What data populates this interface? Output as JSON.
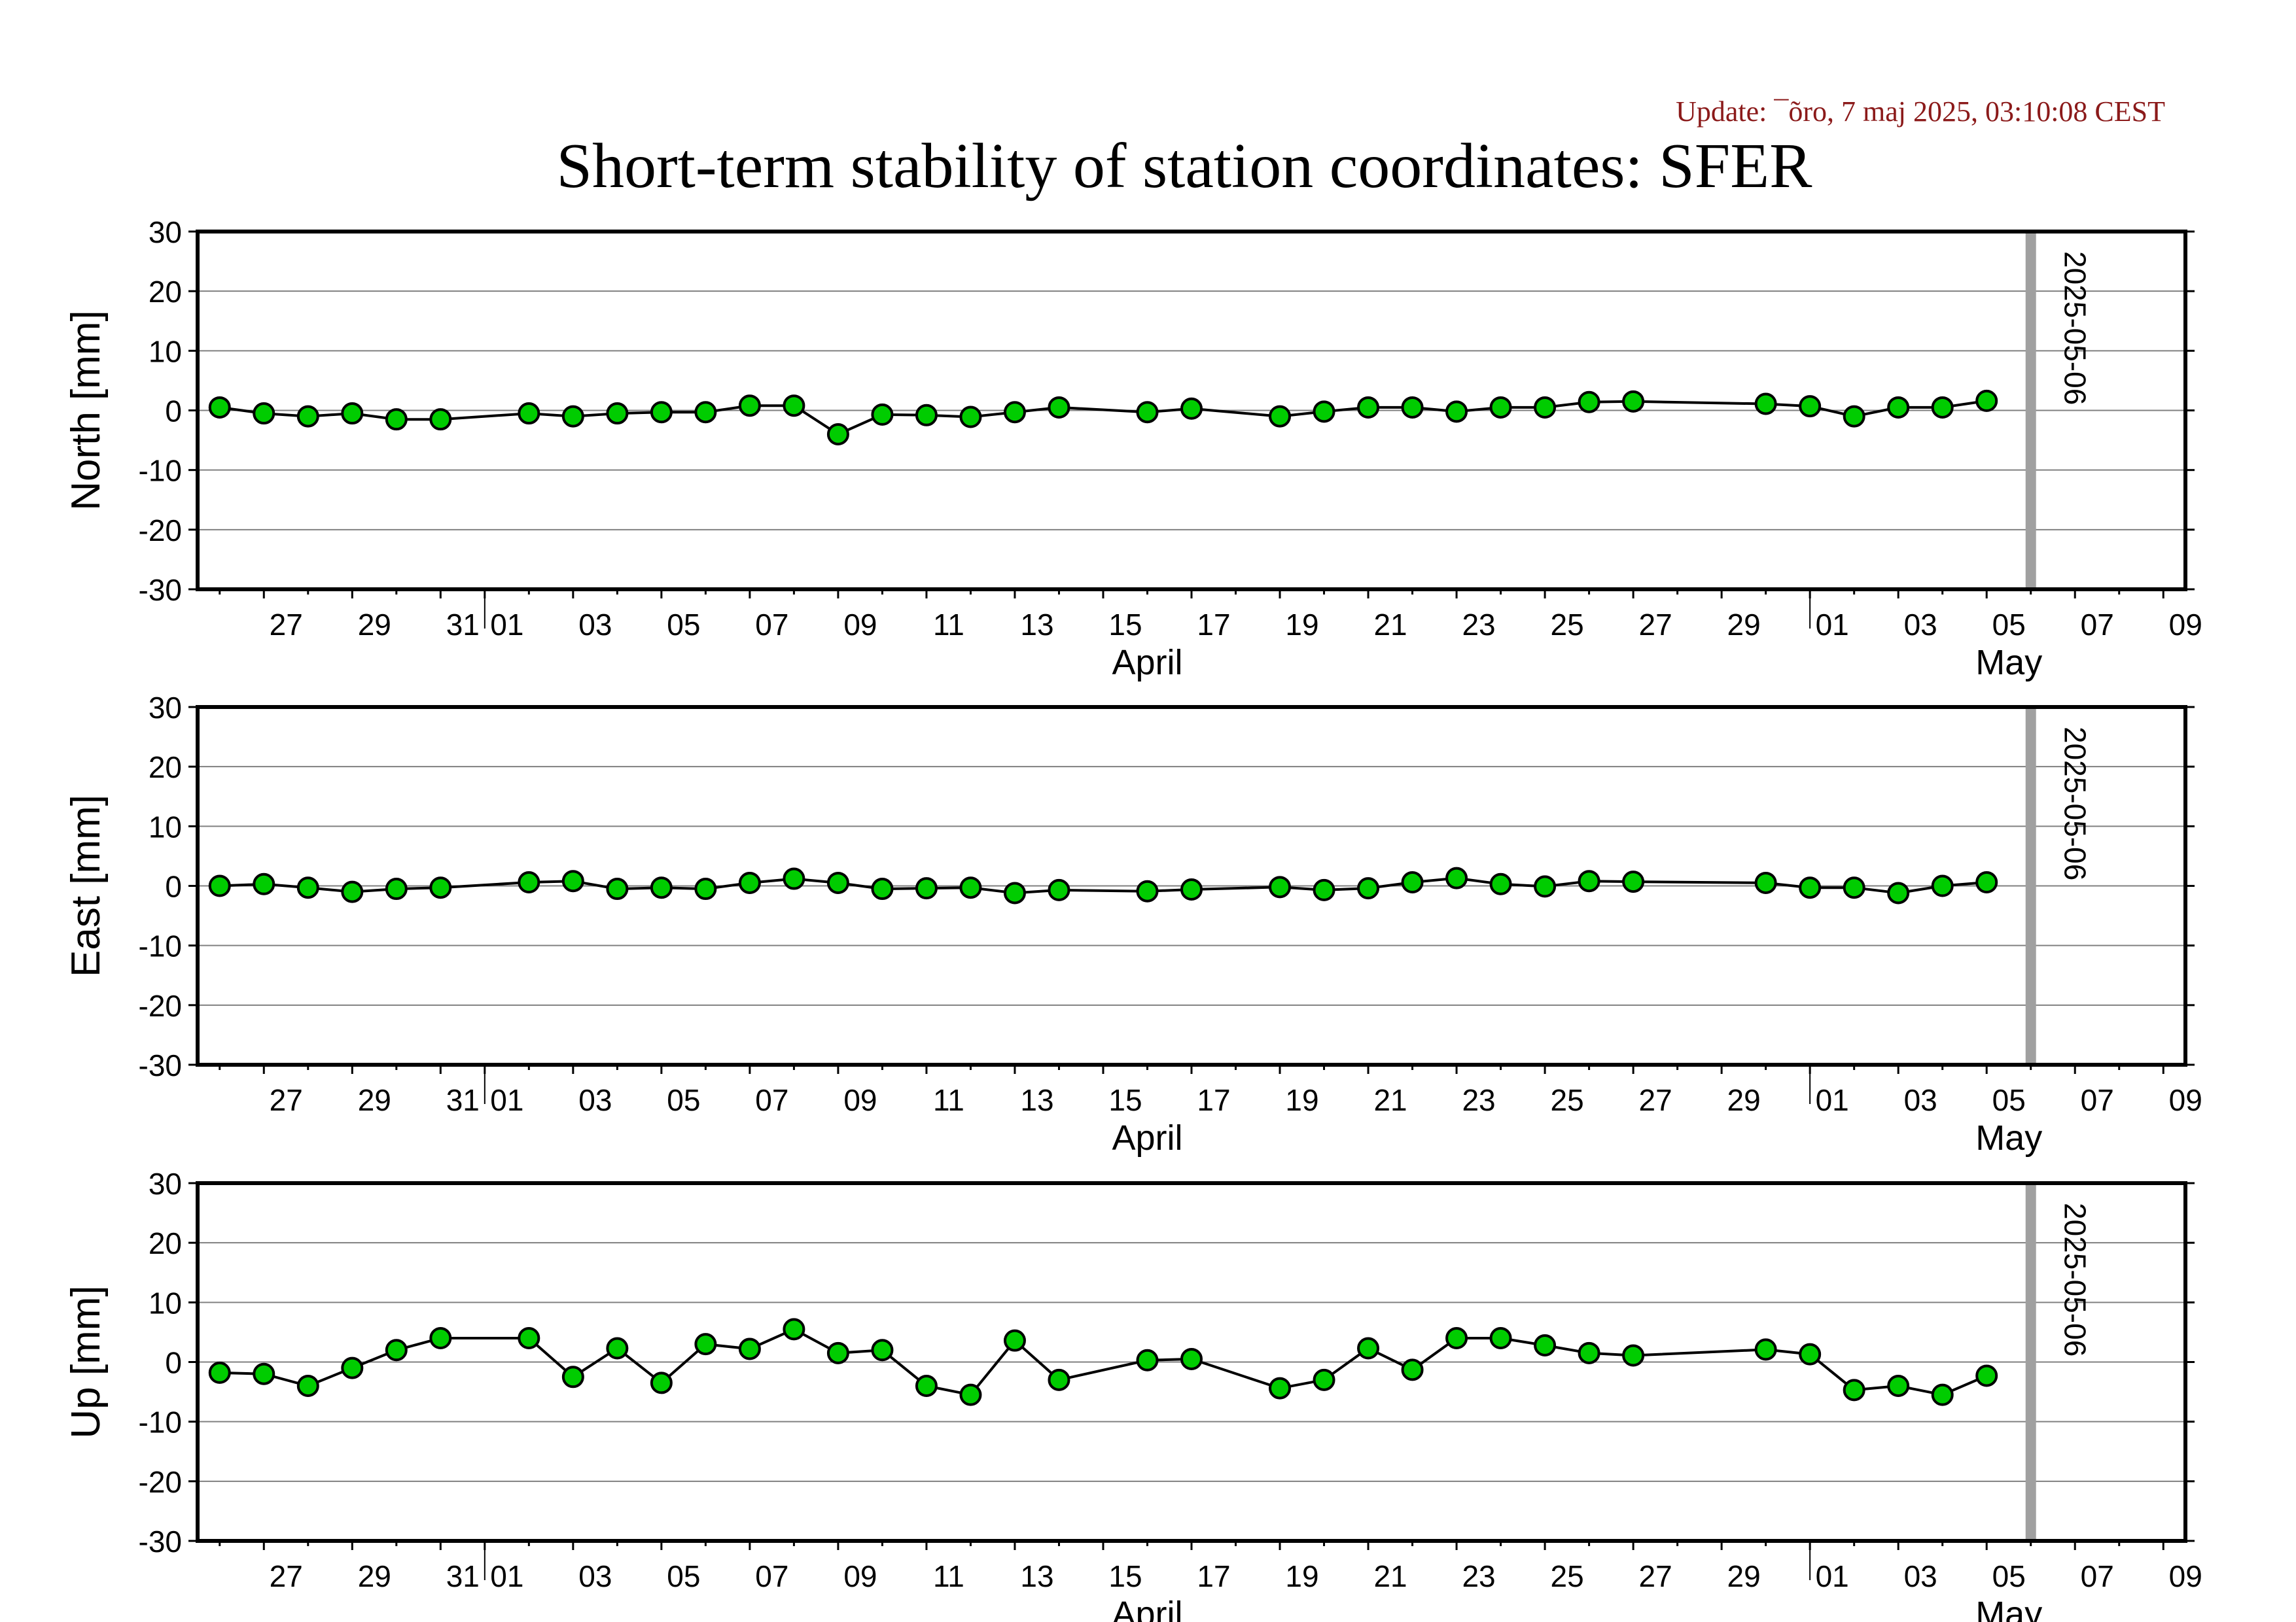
{
  "update_text": "Update: ¯õro, 7 maj 2025, 03:10:08 CEST",
  "title": "Short-term stability of station coordinates: SFER",
  "colors": {
    "marker_fill": "#00cc00",
    "marker_edge": "#000000",
    "line": "#000000",
    "gridline": "#808080",
    "marker_line": "#a0a0a0",
    "update_text": "#8b1a1a"
  },
  "chart_data": [
    {
      "type": "line",
      "ylabel": "North [mm]",
      "ylim": [
        -30,
        30
      ],
      "yticks": [
        -30,
        -20,
        -10,
        0,
        10,
        20,
        30
      ],
      "xlim": [
        "2025-03-25T12:00",
        "2025-05-09T12:00"
      ],
      "x_tick_labels": [
        "27",
        "29",
        "31",
        "01",
        "03",
        "05",
        "07",
        "09",
        "11",
        "13",
        "15",
        "17",
        "19",
        "21",
        "23",
        "25",
        "27",
        "29",
        "01",
        "03",
        "05",
        "07",
        "09"
      ],
      "month_labels": [
        "April",
        "May"
      ],
      "marker_line": {
        "x": "2025-05-06",
        "label": "2025-05-06"
      },
      "grid": true,
      "series": [
        {
          "x": [
            "2025-03-26",
            "2025-03-27",
            "2025-03-28",
            "2025-03-29",
            "2025-03-30",
            "2025-03-31",
            "2025-04-02",
            "2025-04-03",
            "2025-04-04",
            "2025-04-05",
            "2025-04-06",
            "2025-04-07",
            "2025-04-08",
            "2025-04-09",
            "2025-04-10",
            "2025-04-11",
            "2025-04-12",
            "2025-04-13",
            "2025-04-14",
            "2025-04-16",
            "2025-04-17",
            "2025-04-19",
            "2025-04-20",
            "2025-04-21",
            "2025-04-22",
            "2025-04-23",
            "2025-04-24",
            "2025-04-25",
            "2025-04-26",
            "2025-04-27",
            "2025-04-30",
            "2025-05-01",
            "2025-05-02",
            "2025-05-03",
            "2025-05-04",
            "2025-05-05"
          ],
          "y": [
            0.5,
            -0.5,
            -1,
            -0.5,
            -1.5,
            -1.5,
            -0.5,
            -1,
            -0.5,
            -0.3,
            -0.3,
            0.8,
            0.8,
            -4,
            -0.7,
            -0.8,
            -1.1,
            -0.3,
            0.5,
            -0.3,
            0.3,
            -1,
            -0.2,
            0.5,
            0.5,
            -0.2,
            0.5,
            0.5,
            1.4,
            1.5,
            1.1,
            0.7,
            -1,
            0.5,
            0.5,
            1.6
          ]
        }
      ]
    },
    {
      "type": "line",
      "ylabel": "East [mm]",
      "ylim": [
        -30,
        30
      ],
      "yticks": [
        -30,
        -20,
        -10,
        0,
        10,
        20,
        30
      ],
      "xlim": [
        "2025-03-25T12:00",
        "2025-05-09T12:00"
      ],
      "x_tick_labels": [
        "27",
        "29",
        "31",
        "01",
        "03",
        "05",
        "07",
        "09",
        "11",
        "13",
        "15",
        "17",
        "19",
        "21",
        "23",
        "25",
        "27",
        "29",
        "01",
        "03",
        "05",
        "07",
        "09"
      ],
      "month_labels": [
        "April",
        "May"
      ],
      "marker_line": {
        "x": "2025-05-06",
        "label": "2025-05-06"
      },
      "grid": true,
      "series": [
        {
          "x": [
            "2025-03-26",
            "2025-03-27",
            "2025-03-28",
            "2025-03-29",
            "2025-03-30",
            "2025-03-31",
            "2025-04-02",
            "2025-04-03",
            "2025-04-04",
            "2025-04-05",
            "2025-04-06",
            "2025-04-07",
            "2025-04-08",
            "2025-04-09",
            "2025-04-10",
            "2025-04-11",
            "2025-04-12",
            "2025-04-13",
            "2025-04-14",
            "2025-04-16",
            "2025-04-17",
            "2025-04-19",
            "2025-04-20",
            "2025-04-21",
            "2025-04-22",
            "2025-04-23",
            "2025-04-24",
            "2025-04-25",
            "2025-04-26",
            "2025-04-27",
            "2025-04-30",
            "2025-05-01",
            "2025-05-02",
            "2025-05-03",
            "2025-05-04",
            "2025-05-05"
          ],
          "y": [
            0,
            0.3,
            -0.3,
            -1,
            -0.5,
            -0.3,
            0.6,
            0.8,
            -0.5,
            -0.3,
            -0.5,
            0.5,
            1.2,
            0.5,
            -0.5,
            -0.4,
            -0.3,
            -1.2,
            -0.7,
            -0.9,
            -0.6,
            -0.2,
            -0.7,
            -0.4,
            0.6,
            1.3,
            0.3,
            -0.1,
            0.8,
            0.7,
            0.5,
            -0.3,
            -0.3,
            -1.2,
            0,
            0.6
          ]
        }
      ]
    },
    {
      "type": "line",
      "ylabel": "Up [mm]",
      "ylim": [
        -30,
        30
      ],
      "yticks": [
        -30,
        -20,
        -10,
        0,
        10,
        20,
        30
      ],
      "xlim": [
        "2025-03-25T12:00",
        "2025-05-09T12:00"
      ],
      "x_tick_labels": [
        "27",
        "29",
        "31",
        "01",
        "03",
        "05",
        "07",
        "09",
        "11",
        "13",
        "15",
        "17",
        "19",
        "21",
        "23",
        "25",
        "27",
        "29",
        "01",
        "03",
        "05",
        "07",
        "09"
      ],
      "month_labels": [
        "April",
        "May"
      ],
      "marker_line": {
        "x": "2025-05-06",
        "label": "2025-05-06"
      },
      "grid": true,
      "series": [
        {
          "x": [
            "2025-03-26",
            "2025-03-27",
            "2025-03-28",
            "2025-03-29",
            "2025-03-30",
            "2025-03-31",
            "2025-04-02",
            "2025-04-03",
            "2025-04-04",
            "2025-04-05",
            "2025-04-06",
            "2025-04-07",
            "2025-04-08",
            "2025-04-09",
            "2025-04-10",
            "2025-04-11",
            "2025-04-12",
            "2025-04-13",
            "2025-04-14",
            "2025-04-16",
            "2025-04-17",
            "2025-04-19",
            "2025-04-20",
            "2025-04-21",
            "2025-04-22",
            "2025-04-23",
            "2025-04-24",
            "2025-04-25",
            "2025-04-26",
            "2025-04-27",
            "2025-04-30",
            "2025-05-01",
            "2025-05-02",
            "2025-05-03",
            "2025-05-04",
            "2025-05-05"
          ],
          "y": [
            -1.8,
            -2,
            -4,
            -1,
            2,
            4,
            4,
            -2.5,
            2.3,
            -3.5,
            3,
            2.2,
            5.5,
            1.5,
            2,
            -4,
            -5.5,
            3.6,
            -3,
            0.3,
            0.5,
            -4.4,
            -3,
            2.3,
            -1.3,
            4,
            4,
            2.8,
            1.5,
            1.1,
            2.1,
            1.3,
            -4.7,
            -4,
            -5.5,
            -2.3
          ]
        }
      ]
    }
  ]
}
